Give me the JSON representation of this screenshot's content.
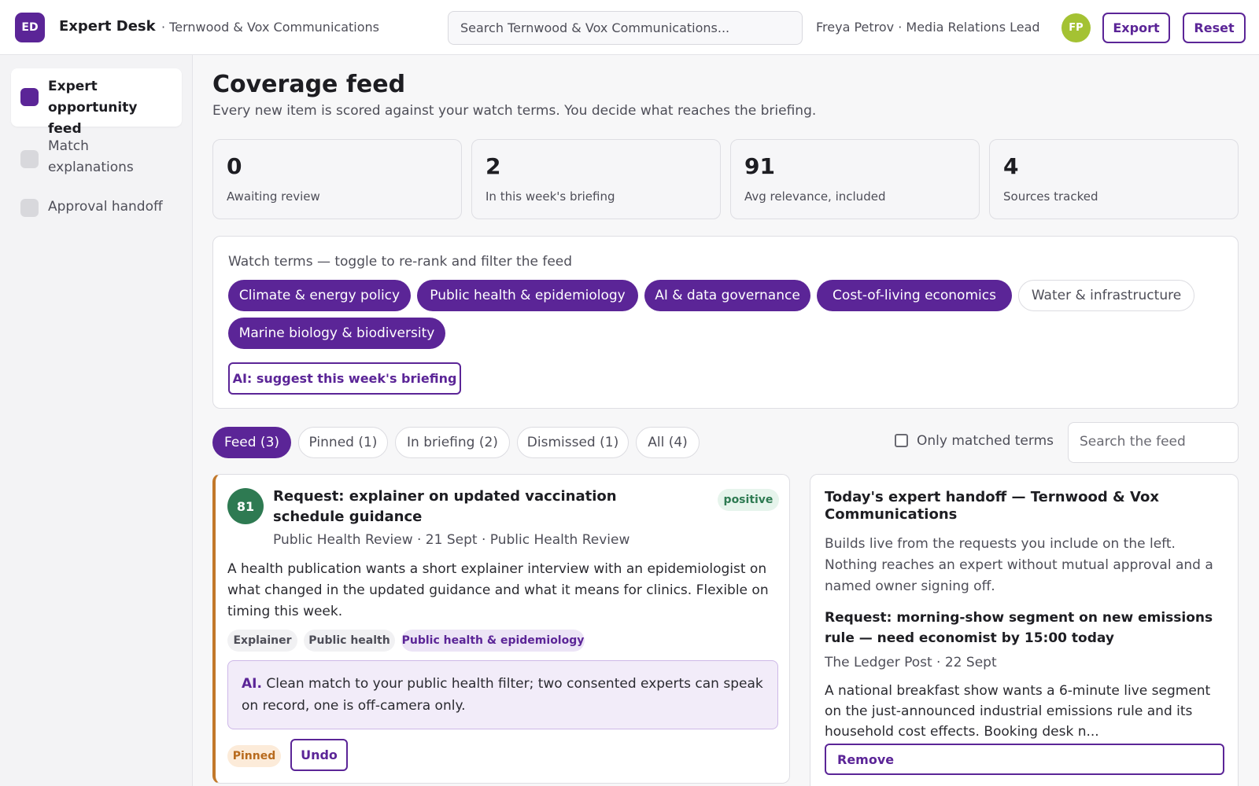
{
  "header": {
    "logo_text": "ED",
    "app_name": "Expert Desk",
    "org_name": "· Ternwood & Vox Communications",
    "search_placeholder": "Search Ternwood & Vox Communications...",
    "user": "Freya Petrov · Media Relations Lead",
    "avatar_initials": "FP",
    "export_label": "Export",
    "reset_label": "Reset"
  },
  "sidebar": {
    "items": [
      {
        "label": "Expert opportunity feed",
        "active": true
      },
      {
        "label": "Match explanations",
        "active": false
      },
      {
        "label": "Approval handoff",
        "active": false
      }
    ]
  },
  "page": {
    "title": "Coverage feed",
    "subtitle": "Every new item is scored against your watch terms. You decide what reaches the briefing."
  },
  "stats": [
    {
      "value": "0",
      "label": "Awaiting review"
    },
    {
      "value": "2",
      "label": "In this week's briefing"
    },
    {
      "value": "91",
      "label": "Avg relevance, included"
    },
    {
      "value": "4",
      "label": "Sources tracked"
    }
  ],
  "watch": {
    "title": "Watch terms — toggle to re-rank and filter the feed",
    "terms": [
      {
        "label": "Climate & energy policy",
        "on": true
      },
      {
        "label": "Public health & epidemiology",
        "on": true
      },
      {
        "label": "AI & data governance",
        "on": true
      },
      {
        "label": "Cost-of-living economics",
        "on": true
      },
      {
        "label": "Water & infrastructure",
        "on": false
      },
      {
        "label": "Marine biology & biodiversity",
        "on": true
      }
    ],
    "suggest_label": "AI: suggest this week's briefing"
  },
  "tabs": [
    {
      "label": "Feed (3)",
      "active": true
    },
    {
      "label": "Pinned (1)",
      "active": false
    },
    {
      "label": "In briefing (2)",
      "active": false
    },
    {
      "label": "Dismissed (1)",
      "active": false
    },
    {
      "label": "All (4)",
      "active": false
    }
  ],
  "filter": {
    "only_matched_label": "Only matched terms",
    "only_matched_checked": false,
    "search_placeholder": "Search the feed"
  },
  "card": {
    "score": "81",
    "title": "Request: explainer on updated vaccination schedule guidance",
    "sentiment": "positive",
    "meta": "Public Health Review · 21 Sept · Public Health Review",
    "body": "A health publication wants a short explainer interview with an epidemiologist on what changed in the updated guidance and what it means for clinics. Flexible on timing this week.",
    "tags": [
      "Explainer",
      "Public health",
      "Public health & epidemiology"
    ],
    "ai_prefix": "AI.",
    "ai_text": "Clean match to your public health filter; two consented experts can speak on record, one is off-camera only.",
    "pinned_label": "Pinned",
    "undo_label": "Undo"
  },
  "handoff": {
    "title": "Today's expert handoff — Ternwood & Vox Communications",
    "description": "Builds live from the requests you include on the left. Nothing reaches an expert without mutual approval and a named owner signing off.",
    "request_title": "Request: morning-show segment on new emissions rule — need economist by 15:00 today",
    "request_meta": "The Ledger Post · 22 Sept",
    "request_body": "A national breakfast show wants a 6-minute live segment on the just-announced industrial emissions rule and its household cost effects. Booking desk n...",
    "remove_label": "Remove"
  },
  "colors": {
    "accent": "#5b2597",
    "score_green": "#2e7a52",
    "card_border": "#c2782a",
    "avatar": "#a4c233"
  }
}
